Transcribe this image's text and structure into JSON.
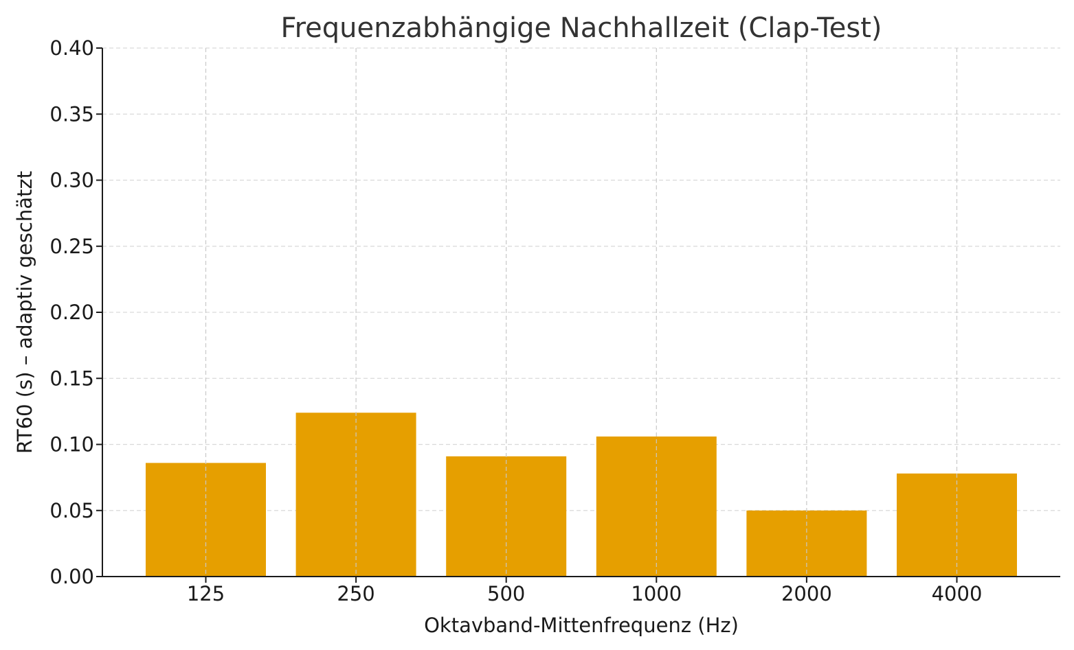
{
  "chart_data": {
    "type": "bar",
    "title": "Frequenzabhängige Nachhallzeit (Clap-Test)",
    "xlabel": "Oktavband-Mittenfrequenz (Hz)",
    "ylabel": "RT60 (s) – adaptiv geschätzt",
    "categories": [
      "125",
      "250",
      "500",
      "1000",
      "2000",
      "4000"
    ],
    "values": [
      0.086,
      0.124,
      0.091,
      0.106,
      0.05,
      0.078
    ],
    "ylim": [
      0,
      0.4
    ],
    "yticks": [
      "0.00",
      "0.05",
      "0.10",
      "0.15",
      "0.20",
      "0.25",
      "0.30",
      "0.35",
      "0.40"
    ],
    "grid": true,
    "bar_color": "#E69F00"
  }
}
